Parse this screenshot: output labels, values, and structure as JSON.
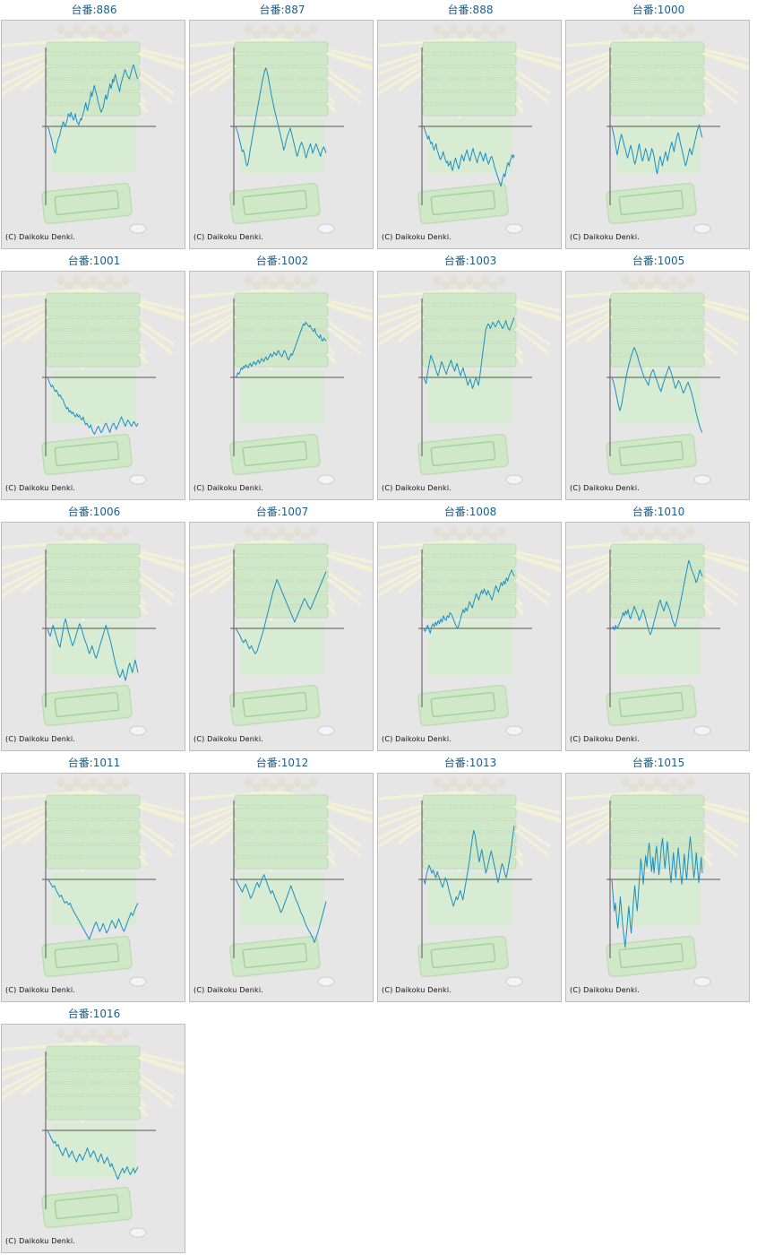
{
  "colors": {
    "title": "#1a5f8c",
    "line": "#1b8fc4",
    "axis": "#555555",
    "panel_bg": "#e6e6e6",
    "panel_border": "#bdbdbd",
    "watermark": "#cfe8c8"
  },
  "chart_data": [
    {
      "type": "line",
      "title": "台番:886",
      "copyright": "(C) Daikoku Denki.",
      "ylim": [
        -100,
        100
      ],
      "values": [
        0,
        -2,
        -5,
        -10,
        -14,
        -18,
        -24,
        -28,
        -32,
        -34,
        -28,
        -22,
        -18,
        -14,
        -12,
        -6,
        -2,
        2,
        6,
        4,
        0,
        2,
        6,
        10,
        16,
        14,
        12,
        18,
        14,
        10,
        8,
        12,
        16,
        10,
        6,
        4,
        2,
        6,
        10,
        8,
        12,
        16,
        20,
        26,
        30,
        24,
        20,
        26,
        30,
        36,
        44,
        38,
        42,
        48,
        52,
        46,
        42,
        38,
        32,
        28,
        24,
        20,
        18,
        22,
        24,
        30,
        36,
        40,
        34,
        38,
        44,
        50,
        54,
        48,
        52,
        60,
        56,
        62,
        66,
        60,
        56,
        52,
        48,
        44,
        52,
        56,
        60,
        64,
        68,
        72,
        70,
        66,
        64,
        62,
        60,
        64,
        68,
        72,
        76,
        78,
        74,
        70,
        66,
        62,
        60
      ]
    },
    {
      "type": "line",
      "title": "台番:887",
      "copyright": "(C) Daikoku Denki.",
      "ylim": [
        -100,
        100
      ],
      "values": [
        0,
        -4,
        -8,
        -14,
        -20,
        -26,
        -32,
        -30,
        -36,
        -44,
        -50,
        -48,
        -40,
        -30,
        -22,
        -14,
        -6,
        2,
        10,
        18,
        26,
        34,
        42,
        50,
        58,
        64,
        70,
        74,
        70,
        64,
        56,
        48,
        40,
        34,
        26,
        20,
        14,
        8,
        2,
        -4,
        -10,
        -16,
        -22,
        -30,
        -26,
        -20,
        -14,
        -10,
        -6,
        -2,
        -8,
        -14,
        -20,
        -26,
        -32,
        -38,
        -34,
        -28,
        -24,
        -20,
        -24,
        -28,
        -34,
        -40,
        -36,
        -30,
        -26,
        -22,
        -28,
        -34,
        -30,
        -26,
        -22,
        -26,
        -30,
        -34,
        -38,
        -32,
        -28,
        -26,
        -30,
        -34
      ]
    },
    {
      "type": "line",
      "title": "台番:888",
      "copyright": "(C) Daikoku Denki.",
      "ylim": [
        -100,
        100
      ],
      "values": [
        0,
        -4,
        -8,
        -12,
        -16,
        -12,
        -18,
        -22,
        -20,
        -26,
        -30,
        -26,
        -22,
        -30,
        -34,
        -38,
        -42,
        -40,
        -36,
        -32,
        -38,
        -42,
        -46,
        -44,
        -50,
        -48,
        -44,
        -52,
        -56,
        -50,
        -44,
        -40,
        -46,
        -50,
        -54,
        -48,
        -42,
        -36,
        -40,
        -44,
        -38,
        -34,
        -30,
        -36,
        -40,
        -44,
        -38,
        -32,
        -28,
        -34,
        -38,
        -42,
        -46,
        -40,
        -36,
        -32,
        -36,
        -40,
        -44,
        -38,
        -34,
        -40,
        -44,
        -48,
        -44,
        -40,
        -38,
        -42,
        -46,
        -52,
        -56,
        -60,
        -64,
        -68,
        -72,
        -76,
        -70,
        -64,
        -60,
        -64,
        -56,
        -50,
        -46,
        -50,
        -44,
        -40,
        -36,
        -40,
        -36
      ]
    },
    {
      "type": "line",
      "title": "台番:1000",
      "copyright": "(C) Daikoku Denki.",
      "ylim": [
        -100,
        100
      ],
      "values": [
        0,
        -6,
        -12,
        -20,
        -28,
        -36,
        -30,
        -22,
        -16,
        -10,
        -14,
        -20,
        -26,
        -30,
        -36,
        -40,
        -34,
        -28,
        -24,
        -30,
        -36,
        -44,
        -48,
        -42,
        -36,
        -28,
        -22,
        -30,
        -38,
        -44,
        -40,
        -34,
        -28,
        -32,
        -38,
        -44,
        -40,
        -34,
        -28,
        -32,
        -38,
        -46,
        -54,
        -60,
        -52,
        -44,
        -38,
        -44,
        -50,
        -44,
        -38,
        -32,
        -38,
        -44,
        -36,
        -30,
        -24,
        -20,
        -26,
        -32,
        -24,
        -18,
        -12,
        -8,
        -14,
        -20,
        -26,
        -32,
        -38,
        -44,
        -50,
        -46,
        -40,
        -34,
        -28,
        -32,
        -36,
        -30,
        -24,
        -18,
        -12,
        -6,
        -2,
        2,
        -4,
        -10,
        -14
      ]
    },
    {
      "type": "line",
      "title": "台番:1001",
      "copyright": "(C) Daikoku Denki.",
      "ylim": [
        -100,
        100
      ],
      "values": [
        0,
        -4,
        -8,
        -12,
        -10,
        -14,
        -18,
        -16,
        -20,
        -24,
        -22,
        -26,
        -28,
        -32,
        -36,
        -40,
        -38,
        -44,
        -42,
        -46,
        -44,
        -48,
        -50,
        -46,
        -50,
        -48,
        -52,
        -54,
        -50,
        -56,
        -60,
        -58,
        -62,
        -64,
        -60,
        -66,
        -70,
        -72,
        -68,
        -64,
        -62,
        -66,
        -70,
        -68,
        -64,
        -60,
        -58,
        -62,
        -66,
        -70,
        -64,
        -60,
        -58,
        -62,
        -66,
        -62,
        -58,
        -54,
        -50,
        -54,
        -58,
        -62,
        -58,
        -54,
        -56,
        -60,
        -62,
        -58,
        -56,
        -60,
        -62,
        -58
      ]
    },
    {
      "type": "line",
      "title": "台番:1002",
      "copyright": "(C) Daikoku Denki.",
      "ylim": [
        -100,
        100
      ],
      "values": [
        0,
        2,
        6,
        4,
        8,
        12,
        10,
        14,
        12,
        16,
        14,
        12,
        16,
        18,
        14,
        16,
        20,
        18,
        16,
        20,
        22,
        18,
        20,
        24,
        22,
        20,
        24,
        26,
        22,
        24,
        28,
        30,
        26,
        28,
        32,
        30,
        28,
        32,
        34,
        30,
        28,
        26,
        30,
        34,
        32,
        28,
        24,
        22,
        26,
        30,
        28,
        32,
        36,
        40,
        44,
        48,
        52,
        56,
        60,
        64,
        68,
        66,
        70,
        68,
        66,
        64,
        66,
        62,
        60,
        58,
        62,
        56,
        54,
        52,
        50,
        54,
        48,
        46,
        50,
        48,
        46
      ]
    },
    {
      "type": "line",
      "title": "台番:1003",
      "copyright": "(C) Daikoku Denki.",
      "ylim": [
        -100,
        100
      ],
      "values": [
        0,
        -4,
        -8,
        4,
        12,
        20,
        28,
        24,
        20,
        16,
        10,
        6,
        2,
        8,
        14,
        20,
        16,
        12,
        8,
        4,
        10,
        14,
        18,
        22,
        16,
        12,
        8,
        14,
        18,
        12,
        6,
        2,
        8,
        12,
        6,
        2,
        -4,
        -10,
        -6,
        -2,
        -8,
        -14,
        -10,
        -4,
        0,
        -6,
        -10,
        0,
        12,
        24,
        36,
        48,
        60,
        64,
        68,
        66,
        62,
        66,
        70,
        68,
        64,
        66,
        70,
        72,
        68,
        66,
        62,
        64,
        68,
        72,
        66,
        62,
        60,
        64,
        68,
        72,
        76
      ]
    },
    {
      "type": "line",
      "title": "台番:1005",
      "copyright": "(C) Daikoku Denki.",
      "ylim": [
        -100,
        100
      ],
      "values": [
        0,
        -6,
        -14,
        -24,
        -34,
        -42,
        -36,
        -24,
        -12,
        0,
        10,
        18,
        26,
        32,
        38,
        34,
        28,
        20,
        14,
        8,
        2,
        -2,
        -6,
        -10,
        0,
        6,
        10,
        4,
        -2,
        -8,
        -14,
        -18,
        -10,
        -4,
        2,
        8,
        14,
        8,
        2,
        -6,
        -14,
        -10,
        -4,
        -8,
        -14,
        -20,
        -16,
        -10,
        -6,
        -12,
        -18,
        -26,
        -34,
        -44,
        -52,
        -60,
        -66,
        -70
      ]
    },
    {
      "type": "line",
      "title": "台番:1006",
      "copyright": "(C) Daikoku Denki.",
      "ylim": [
        -100,
        100
      ],
      "values": [
        0,
        -6,
        -10,
        -2,
        4,
        -2,
        -8,
        -14,
        -20,
        -24,
        -14,
        -4,
        6,
        12,
        4,
        -4,
        -10,
        -16,
        -22,
        -18,
        -12,
        -6,
        0,
        6,
        2,
        -4,
        -10,
        -16,
        -20,
        -26,
        -32,
        -28,
        -22,
        -28,
        -34,
        -38,
        -32,
        -26,
        -20,
        -14,
        -8,
        -2,
        4,
        -2,
        -8,
        -14,
        -22,
        -30,
        -38,
        -46,
        -52,
        -58,
        -62,
        -58,
        -52,
        -60,
        -66,
        -58,
        -50,
        -44,
        -50,
        -56,
        -48,
        -40,
        -48,
        -56
      ]
    },
    {
      "type": "line",
      "title": "台番:1007",
      "copyright": "(C) Daikoku Denki.",
      "ylim": [
        -100,
        100
      ],
      "values": [
        0,
        -4,
        -8,
        -14,
        -18,
        -14,
        -20,
        -26,
        -22,
        -28,
        -32,
        -28,
        -20,
        -12,
        -4,
        6,
        16,
        26,
        36,
        46,
        54,
        62,
        56,
        50,
        44,
        38,
        32,
        26,
        20,
        14,
        8,
        14,
        20,
        26,
        32,
        38,
        34,
        28,
        24,
        30,
        36,
        42,
        48,
        54,
        60,
        66,
        72
      ]
    },
    {
      "type": "line",
      "title": "台番:1008",
      "copyright": "(C) Daikoku Denki.",
      "ylim": [
        -100,
        100
      ],
      "values": [
        0,
        -4,
        0,
        4,
        -2,
        -6,
        2,
        6,
        2,
        8,
        4,
        10,
        6,
        12,
        8,
        16,
        12,
        10,
        16,
        14,
        20,
        18,
        14,
        10,
        6,
        2,
        0,
        6,
        12,
        18,
        24,
        20,
        26,
        22,
        28,
        34,
        30,
        26,
        32,
        38,
        44,
        40,
        36,
        42,
        48,
        44,
        50,
        46,
        42,
        48,
        44,
        40,
        36,
        42,
        48,
        54,
        50,
        46,
        52,
        58,
        54,
        60,
        56,
        64,
        60,
        66,
        70,
        74,
        70,
        66
      ]
    },
    {
      "type": "line",
      "title": "台番:1010",
      "copyright": "(C) Daikoku Denki.",
      "ylim": [
        -100,
        100
      ],
      "values": [
        0,
        2,
        -2,
        4,
        0,
        2,
        6,
        10,
        14,
        20,
        16,
        22,
        18,
        24,
        16,
        12,
        18,
        22,
        28,
        24,
        20,
        16,
        10,
        14,
        18,
        24,
        20,
        14,
        8,
        2,
        -4,
        -8,
        -4,
        2,
        8,
        14,
        20,
        26,
        32,
        36,
        30,
        26,
        22,
        28,
        34,
        30,
        26,
        22,
        16,
        10,
        6,
        2,
        8,
        14,
        22,
        30,
        38,
        46,
        54,
        62,
        70,
        78,
        86,
        82,
        76,
        72,
        68,
        64,
        58,
        62,
        68,
        74,
        70,
        66
      ]
    },
    {
      "type": "line",
      "title": "台番:1011",
      "copyright": "(C) Daikoku Denki.",
      "ylim": [
        -100,
        100
      ],
      "values": [
        0,
        -2,
        -6,
        -10,
        -8,
        -14,
        -18,
        -22,
        -20,
        -26,
        -30,
        -28,
        -32,
        -30,
        -36,
        -40,
        -44,
        -48,
        -52,
        -56,
        -60,
        -64,
        -68,
        -72,
        -76,
        -70,
        -64,
        -58,
        -54,
        -60,
        -66,
        -62,
        -56,
        -62,
        -68,
        -64,
        -58,
        -52,
        -56,
        -62,
        -56,
        -50,
        -56,
        -62,
        -66,
        -60,
        -54,
        -48,
        -42,
        -46,
        -40,
        -34,
        -30
      ]
    },
    {
      "type": "line",
      "title": "台番:1012",
      "copyright": "(C) Daikoku Denki.",
      "ylim": [
        -100,
        100
      ],
      "values": [
        0,
        -4,
        -8,
        -12,
        -16,
        -10,
        -6,
        -12,
        -18,
        -24,
        -20,
        -14,
        -8,
        -4,
        -10,
        -4,
        2,
        6,
        0,
        -6,
        -12,
        -18,
        -14,
        -20,
        -26,
        -30,
        -36,
        -42,
        -38,
        -32,
        -26,
        -20,
        -14,
        -8,
        -14,
        -20,
        -26,
        -30,
        -36,
        -42,
        -46,
        -52,
        -58,
        -62,
        -66,
        -70,
        -74,
        -80,
        -74,
        -68,
        -60,
        -52,
        -44,
        -36,
        -28
      ]
    },
    {
      "type": "line",
      "title": "台番:1013",
      "copyright": "(C) Daikoku Denki.",
      "ylim": [
        -100,
        100
      ],
      "values": [
        0,
        -6,
        6,
        12,
        18,
        14,
        8,
        12,
        6,
        2,
        10,
        4,
        0,
        -6,
        -10,
        -4,
        2,
        -2,
        -8,
        -16,
        -22,
        -28,
        -34,
        -28,
        -22,
        -26,
        -20,
        -14,
        -20,
        -26,
        -16,
        -6,
        4,
        14,
        26,
        40,
        52,
        62,
        56,
        44,
        34,
        22,
        30,
        38,
        28,
        18,
        8,
        14,
        22,
        30,
        36,
        28,
        20,
        12,
        4,
        -4,
        4,
        12,
        20,
        16,
        8,
        2,
        10,
        20,
        30,
        42,
        56,
        68
      ]
    },
    {
      "type": "line",
      "title": "台番:1015",
      "copyright": "(C) Daikoku Denki.",
      "ylim": [
        -100,
        100
      ],
      "values": [
        0,
        -20,
        -40,
        -30,
        -50,
        -62,
        -44,
        -22,
        -40,
        -58,
        -72,
        -86,
        -70,
        -52,
        -34,
        -52,
        -68,
        -48,
        -26,
        -8,
        -26,
        -40,
        -18,
        4,
        26,
        12,
        -6,
        14,
        30,
        16,
        36,
        46,
        26,
        10,
        28,
        8,
        28,
        42,
        24,
        6,
        22,
        42,
        52,
        32,
        14,
        30,
        48,
        30,
        12,
        -4,
        14,
        34,
        16,
        2,
        22,
        40,
        24,
        6,
        -6,
        12,
        32,
        14,
        0,
        20,
        40,
        54,
        36,
        18,
        2,
        14,
        34,
        14,
        -4,
        10,
        28,
        8
      ]
    },
    {
      "type": "line",
      "title": "台番:1016",
      "copyright": "(C) Daikoku Denki.",
      "ylim": [
        -100,
        100
      ],
      "values": [
        0,
        -4,
        -8,
        -12,
        -16,
        -14,
        -20,
        -18,
        -24,
        -28,
        -32,
        -26,
        -22,
        -28,
        -34,
        -30,
        -26,
        -32,
        -36,
        -40,
        -34,
        -30,
        -34,
        -38,
        -32,
        -28,
        -22,
        -28,
        -34,
        -30,
        -26,
        -30,
        -36,
        -40,
        -34,
        -30,
        -36,
        -42,
        -38,
        -34,
        -40,
        -46,
        -42,
        -48,
        -52,
        -58,
        -62,
        -56,
        -52,
        -48,
        -54,
        -50,
        -46,
        -52,
        -56,
        -52,
        -48,
        -54,
        -50,
        -46
      ]
    }
  ]
}
